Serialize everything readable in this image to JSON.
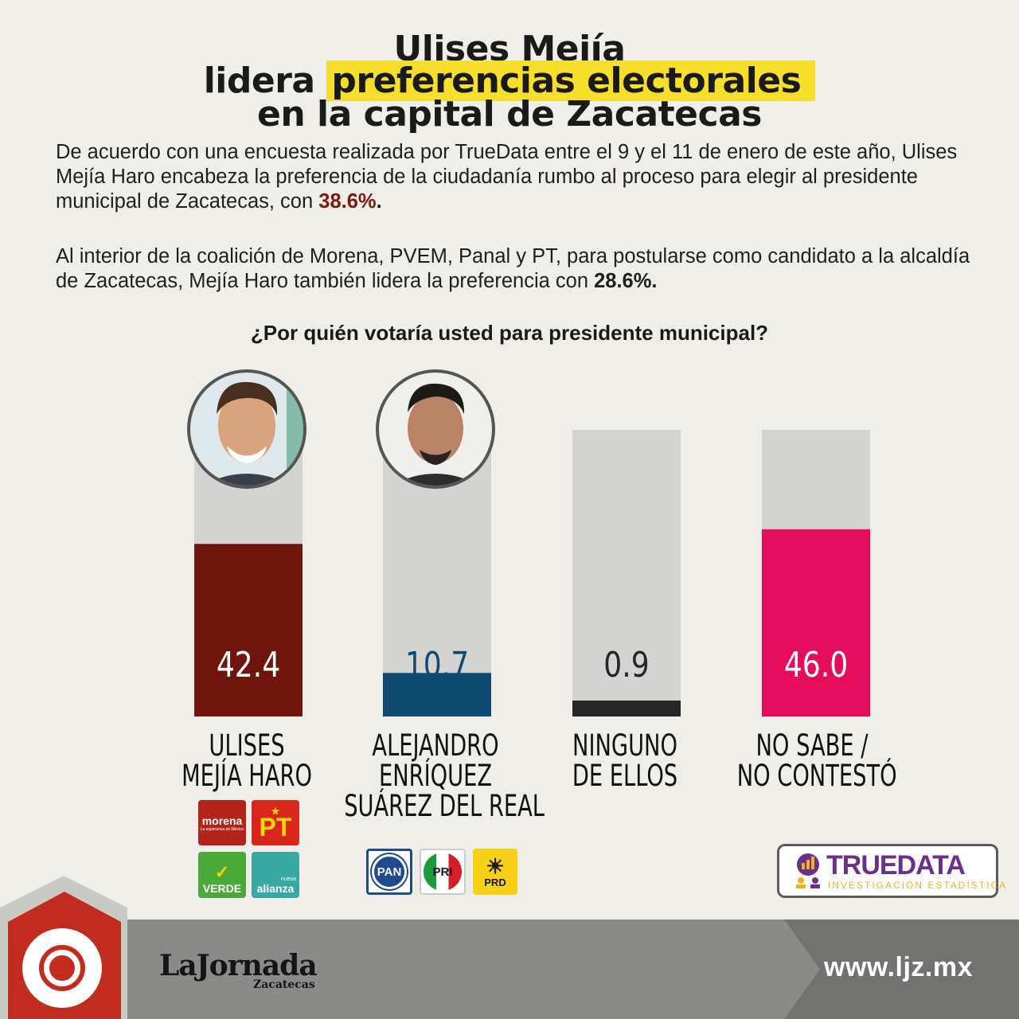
{
  "title": {
    "line1": "Ulises Mejía",
    "line2_pre": "lidera ",
    "line2_highlight": "preferencias electorales",
    "line3": "en la capital de Zacatecas"
  },
  "paragraph1": {
    "text": "De acuerdo con una encuesta realizada por TrueData entre el 9 y el 11 de enero de este año, Ulises Mejía Haro encabeza la preferencia de la ciudadanía rumbo al proceso para elegir al presidente municipal de Zacatecas, con ",
    "pct": "38.6%",
    "end": "."
  },
  "paragraph2": {
    "text": "Al interior de la coalición de Morena, PVEM, Panal y PT, para postularse como candidato a la alcaldía de Zacatecas, Mejía Haro también lidera la preferencia con ",
    "pct": "28.6%."
  },
  "question": "¿Por quién votaría usted para presidente municipal?",
  "chart_data": {
    "type": "bar",
    "categories": [
      "ULISES MEJÍA HARO",
      "ALEJANDRO ENRÍQUEZ SUÁREZ DEL REAL",
      "NINGUNO DE ELLOS",
      "NO SABE / NO CONTESTÓ"
    ],
    "values": [
      42.4,
      10.7,
      0.9,
      46.0
    ],
    "value_labels": [
      "42.4",
      "10.7",
      "0.9",
      "46.0"
    ],
    "ylim": [
      0,
      100
    ],
    "colors": [
      "#6e150d",
      "#0f4a72",
      "#262626",
      "#e40c5b"
    ],
    "track_color": "#d3d3d1"
  },
  "candidates": [
    {
      "lines": [
        "ULISES",
        "MEJÍA HARO"
      ]
    },
    {
      "lines": [
        "ALEJANDRO",
        "ENRÍQUEZ",
        "SUÁREZ DEL REAL"
      ]
    },
    {
      "lines": [
        "NINGUNO",
        "DE ELLOS"
      ]
    },
    {
      "lines": [
        "NO SABE /",
        "NO CONTESTÓ"
      ]
    }
  ],
  "parties": {
    "morena": "morena",
    "morena_sub": "La esperanza de México",
    "pt": "PT",
    "verde": "VERDE",
    "alianza": "alianza",
    "alianza_sub": "nueva",
    "pan": "PAN",
    "pri": "PRI",
    "prd": "PRD"
  },
  "branding": {
    "source_name": "TRUEDATA",
    "source_sub": "INVESTIGACIÓN ESTADÍSTICA",
    "paper_name": "LaJornada",
    "paper_sub": "Zacatecas",
    "url": "www.ljz.mx"
  }
}
